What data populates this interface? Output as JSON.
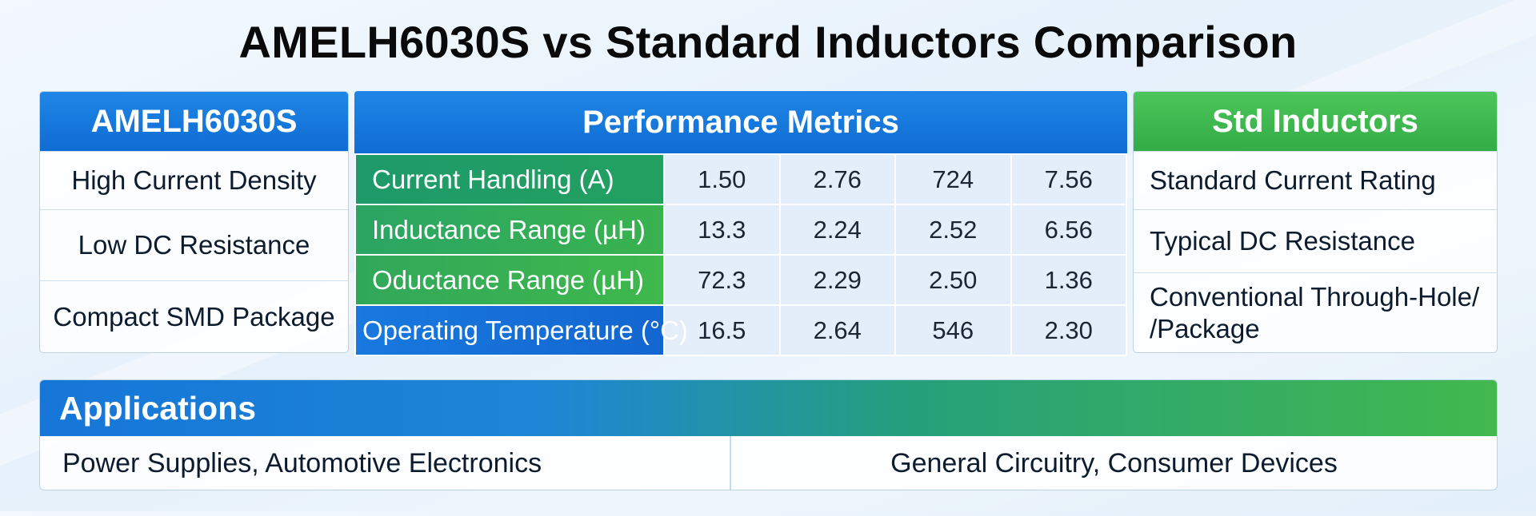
{
  "title": "AMELH6030S vs Standard Inductors Comparison",
  "left_panel": {
    "header": "AMELH6030S",
    "features": [
      "High Current Density",
      "Low DC Resistance",
      "Compact SMD Package"
    ]
  },
  "metrics_panel": {
    "header": "Performance Metrics"
  },
  "right_panel": {
    "header": "Std Inductors",
    "features": [
      "Standard Current Rating",
      "Typical DC Resistance",
      "Conventional Through-Hole/ /Package"
    ]
  },
  "applications": {
    "header": "Applications",
    "left": "Power Supplies, Automotive Electronics",
    "right": "General Circuitry, Consumer Devices"
  },
  "chart_data": {
    "type": "table",
    "title": "Performance Metrics",
    "rows": [
      {
        "label": "Current Handling (A)",
        "values": [
          "1.50",
          "2.76",
          "724",
          "7.56"
        ]
      },
      {
        "label": "Inductance Range (µH)",
        "values": [
          "13.3",
          "2.24",
          "2.52",
          "6.56"
        ]
      },
      {
        "label": "Oductance Range (µH)",
        "values": [
          "72.3",
          "2.29",
          "2.50",
          "1.36"
        ]
      },
      {
        "label": "Operating Temperature (°C)",
        "values": [
          "16.5",
          "2.64",
          "546",
          "2.30"
        ]
      }
    ]
  }
}
